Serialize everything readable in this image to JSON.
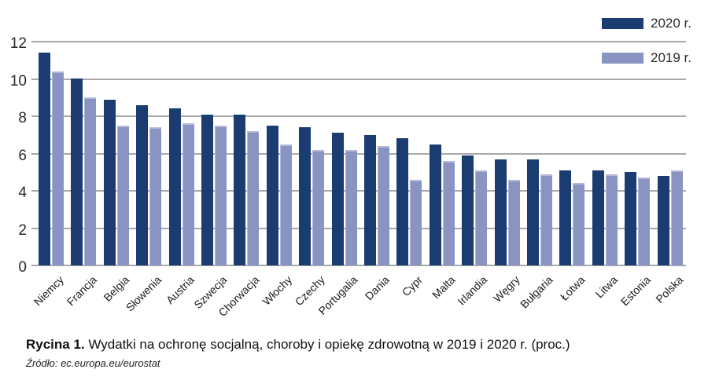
{
  "legend": {
    "items": [
      {
        "label": "2020 r.",
        "color": "#1a3c70"
      },
      {
        "label": "2019 r.",
        "color": "#8a94c2"
      }
    ]
  },
  "caption": {
    "label": "Rycina 1.",
    "text": " Wydatki na ochronę socjalną, choroby i opiekę zdrowotną w 2019 i 2020 r. (proc.)"
  },
  "source": "Źródło: ec.europa.eu/eurostat",
  "chart_data": {
    "type": "bar",
    "title": "Wydatki na ochronę socjalną, choroby i opiekę zdrowotną w 2019 i 2020 r. (proc.)",
    "categories": [
      "Niemcy",
      "Francja",
      "Belgia",
      "Słowenia",
      "Austria",
      "Szwecja",
      "Chorwacja",
      "Włochy",
      "Czechy",
      "Portugalia",
      "Dania",
      "Cypr",
      "Malta",
      "Irlandia",
      "Węgry",
      "Bułgaria",
      "Łotwa",
      "Litwa",
      "Estonia",
      "Polska"
    ],
    "series": [
      {
        "name": "2020 r.",
        "color": "#1a3c70",
        "values": [
          11.4,
          10.0,
          8.9,
          8.6,
          8.4,
          8.1,
          8.1,
          7.5,
          7.4,
          7.1,
          7.0,
          6.8,
          6.5,
          5.9,
          5.7,
          5.7,
          5.1,
          5.1,
          5.0,
          4.8
        ]
      },
      {
        "name": "2019 r.",
        "color": "#8a94c2",
        "values": [
          10.4,
          9.0,
          7.5,
          7.4,
          7.6,
          7.5,
          7.2,
          6.5,
          6.2,
          6.2,
          6.4,
          4.6,
          5.6,
          5.1,
          4.6,
          4.9,
          4.4,
          4.9,
          4.7,
          5.1
        ]
      }
    ],
    "xlabel": "",
    "ylabel": "",
    "ylim": [
      0,
      12
    ],
    "yticks": [
      12,
      10,
      8,
      6,
      4,
      2,
      0
    ],
    "grid": true,
    "gridline_color": "#a9a9a9",
    "legend_position": "top-right"
  }
}
